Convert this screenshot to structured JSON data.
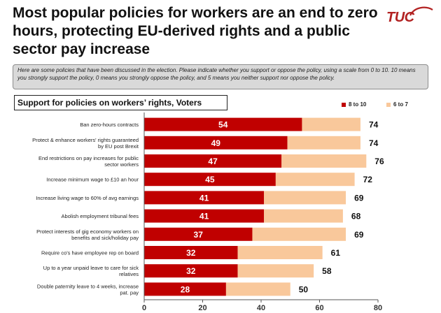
{
  "page": {
    "title": "Most popular policies for workers are an end to zero hours, protecting EU-derived rights and a public sector pay increase",
    "logo_text": "TUC",
    "question": "Here are some policies that have been discussed in the election. Please indicate whether you support or oppose the policy, using a scale from 0 to 10. 10 means you strongly support the policy, 0 means you strongly oppose the policy, and 5 means you neither support nor oppose the policy.",
    "chart_title": "Support for policies on workers’ rights, Voters"
  },
  "colors": {
    "series_8_10": "#c00000",
    "series_6_7": "#f9c89b",
    "brand": "#b22222"
  },
  "chart_data": {
    "type": "bar",
    "orientation": "horizontal",
    "stacked": true,
    "title": "Support for policies on workers’ rights, Voters",
    "categories": [
      "Ban zero-hours contracts",
      "Protect & enhance workers' rights guaranteed by EU post Brexit",
      "End restrictions on pay increases for public sector workers",
      "Increase minimum wage to £10 an hour",
      "Increase living wage to 60% of avg earnings",
      "Abolish employment tribunal fees",
      "Protect interests of gig economy workers on benefits and sick/holiday pay",
      "Require co's have employee rep on board",
      "Up to a year unpaid leave to care for sick relatives",
      "Double paternity leave to 4 weeks, increase pat. pay"
    ],
    "series": [
      {
        "name": "8 to 10",
        "values": [
          54,
          49,
          47,
          45,
          41,
          41,
          37,
          32,
          32,
          28
        ]
      },
      {
        "name": "6 to 7",
        "values": [
          20,
          25,
          29,
          27,
          28,
          27,
          32,
          29,
          26,
          22
        ]
      }
    ],
    "totals": [
      74,
      74,
      76,
      72,
      69,
      68,
      69,
      61,
      58,
      50
    ],
    "xlim": [
      0,
      80
    ],
    "xticks": [
      0,
      20,
      40,
      60,
      80
    ],
    "legend_position": "top-right",
    "grid": false
  }
}
